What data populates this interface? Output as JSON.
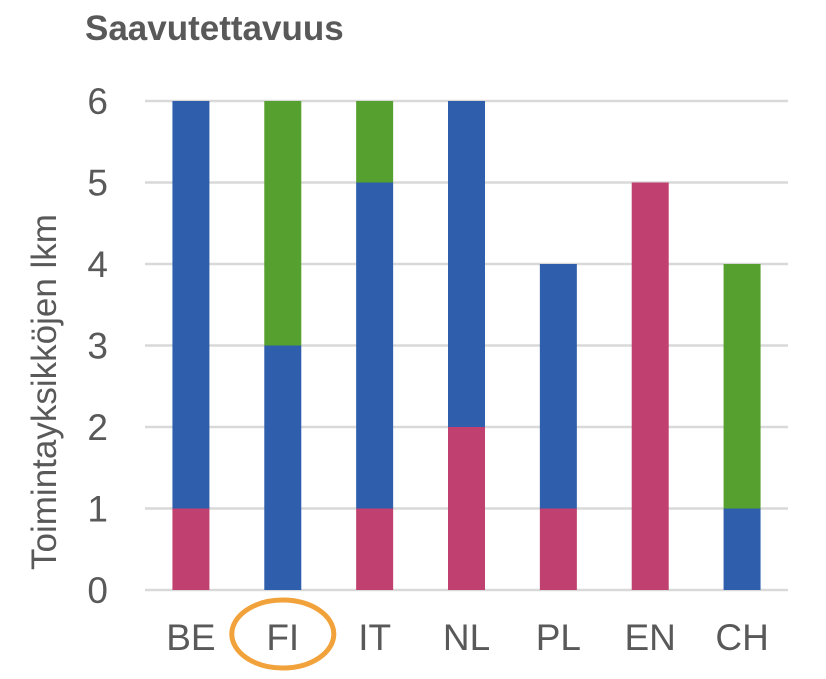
{
  "chart_data": {
    "type": "bar",
    "stacked": true,
    "title": "Saavutettavuus",
    "xlabel": "",
    "ylabel": "Toimintayksikköjen lkm",
    "ylim": [
      0,
      6
    ],
    "yticks": [
      "0",
      "1",
      "2",
      "3",
      "4",
      "5",
      "6"
    ],
    "grid": true,
    "categories": [
      "BE",
      "FI",
      "IT",
      "NL",
      "PL",
      "EN",
      "CH"
    ],
    "series": [
      {
        "color": "#C0406F",
        "values": [
          1,
          0,
          1,
          2,
          1,
          5,
          0
        ]
      },
      {
        "color": "#2F5FAC",
        "values": [
          5,
          3,
          4,
          4,
          3,
          0,
          1
        ]
      },
      {
        "color": "#56A02F",
        "values": [
          0,
          3,
          1,
          0,
          0,
          0,
          3
        ]
      }
    ],
    "highlight": {
      "category": "FI",
      "shape": "ellipse",
      "color": "#F2A23A"
    }
  }
}
